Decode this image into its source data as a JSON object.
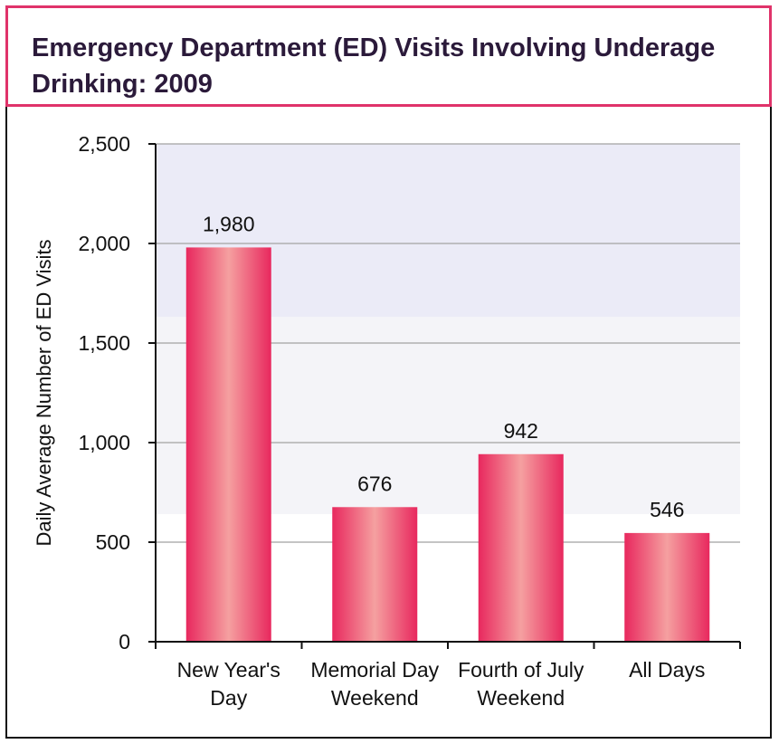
{
  "chart_data": {
    "type": "bar",
    "title": "Emergency Department (ED) Visits Involving Underage Drinking: 2009",
    "xlabel": "",
    "ylabel": "Daily Average Number of ED Visits",
    "categories": [
      [
        "New Year's",
        "Day"
      ],
      [
        "Memorial Day",
        "Weekend"
      ],
      [
        "Fourth of July",
        "Weekend"
      ],
      [
        "All Days"
      ]
    ],
    "values": [
      1980,
      676,
      942,
      546
    ],
    "value_labels": [
      "1,980",
      "676",
      "942",
      "546"
    ],
    "ylim": [
      0,
      2500
    ],
    "yticks": [
      0,
      500,
      1000,
      1500,
      2000,
      2500
    ],
    "ytick_labels": [
      "0",
      "500",
      "1,000",
      "1,500",
      "2,000",
      "2,500"
    ],
    "grid": true,
    "colors": {
      "bar_edge": "#e8285e",
      "bar_center": "#f5a0a0",
      "title_border": "#e0336a",
      "band_top": "#ebebf7",
      "band_mid": "#f4f4f8",
      "band_bottom": "#ffffff",
      "gridline": "#b0b0b0"
    }
  }
}
